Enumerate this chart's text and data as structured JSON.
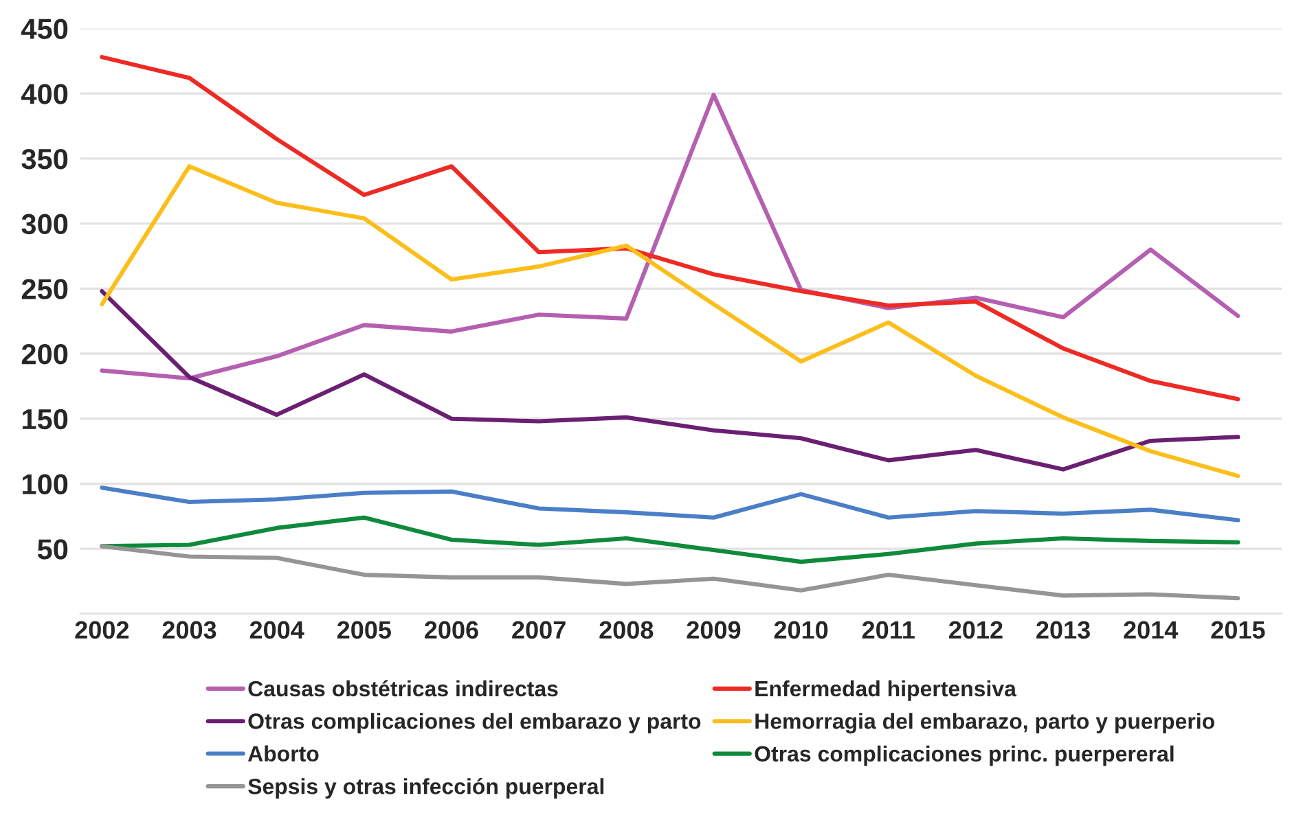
{
  "chart_data": {
    "type": "line",
    "categories": [
      "2002",
      "2003",
      "2004",
      "2005",
      "2006",
      "2007",
      "2008",
      "2009",
      "2010",
      "2011",
      "2012",
      "2013",
      "2014",
      "2015"
    ],
    "series": [
      {
        "name": "Causas obstétricas indirectas",
        "color": "#b55fb0",
        "values": [
          187,
          181,
          198,
          222,
          217,
          230,
          227,
          399,
          249,
          235,
          243,
          228,
          280,
          229
        ]
      },
      {
        "name": "Enfermedad hipertensiva",
        "color": "#ee2a24",
        "values": [
          428,
          412,
          365,
          322,
          344,
          278,
          281,
          261,
          248,
          237,
          240,
          204,
          179,
          165
        ]
      },
      {
        "name": "Otras complicaciones del embarazo y parto",
        "color": "#6b1f72",
        "values": [
          248,
          182,
          153,
          184,
          150,
          148,
          151,
          141,
          135,
          118,
          126,
          111,
          133,
          136
        ]
      },
      {
        "name": "Hemorragia del embarazo, parto y puerperio",
        "color": "#fbbe1a",
        "values": [
          238,
          344,
          316,
          304,
          257,
          267,
          283,
          238,
          194,
          224,
          183,
          151,
          125,
          106
        ]
      },
      {
        "name": "Aborto",
        "color": "#4a7fc8",
        "values": [
          97,
          86,
          88,
          93,
          94,
          81,
          78,
          74,
          92,
          74,
          79,
          77,
          80,
          72
        ]
      },
      {
        "name": "Otras complicaciones princ. puerpereral",
        "color": "#0f8a3c",
        "values": [
          52,
          53,
          66,
          74,
          57,
          53,
          58,
          49,
          40,
          46,
          54,
          58,
          56,
          55
        ]
      },
      {
        "name": "Sepsis y otras infección puerperal",
        "color": "#959595",
        "values": [
          52,
          44,
          43,
          30,
          28,
          28,
          23,
          27,
          18,
          30,
          22,
          14,
          15,
          12
        ]
      }
    ],
    "ylim": [
      0,
      450
    ],
    "yticks": [
      {
        "value": 0,
        "label": null
      },
      50,
      100,
      150,
      200,
      250,
      300,
      350,
      400,
      450
    ],
    "grid": "y",
    "legend": "bottom",
    "marker": "none",
    "line_style": "solid"
  }
}
